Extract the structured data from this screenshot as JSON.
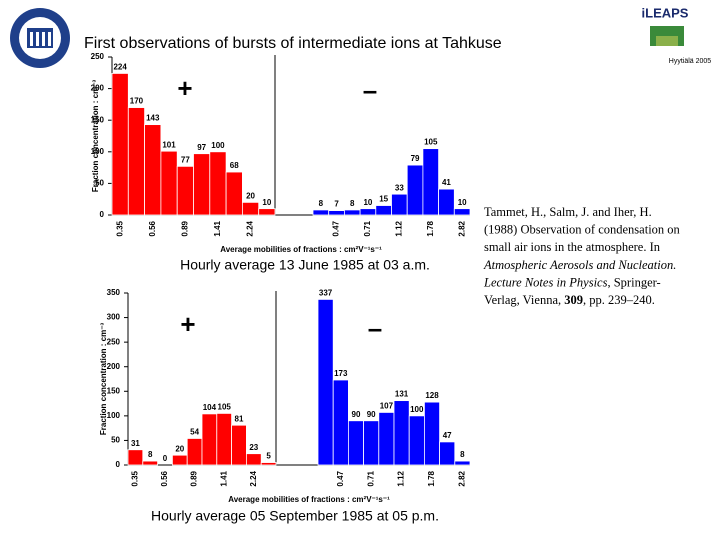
{
  "title": "First observations of bursts of intermediate ions at Tahkuse",
  "logo": {
    "name": "iLEAPS",
    "place": "Hyytiälä 2005"
  },
  "citation": [
    [
      {
        "text": "Tammet, H., Salm, J. and Iher, H.",
        "style": "normal"
      }
    ],
    [
      {
        "text": "(1988) Observation of condensation on",
        "style": "normal"
      }
    ],
    [
      {
        "text": "small air ions in the atmosphere. In",
        "style": "normal"
      }
    ],
    [
      {
        "text": "Atmospheric Aerosols and Nucleation.",
        "style": "italic"
      }
    ],
    [
      {
        "text": "Lecture Notes in Physics",
        "style": "italic"
      },
      {
        "text": ", Springer-",
        "style": "normal"
      }
    ],
    [
      {
        "text": "Verlag, Vienna, ",
        "style": "normal"
      },
      {
        "text": "309",
        "style": "bold"
      },
      {
        "text": ", pp. 239–240.",
        "style": "normal"
      }
    ]
  ],
  "chart_data": [
    {
      "type": "bar",
      "caption": "Hourly average 13 June 1985 at 03 a.m.",
      "x_label": "Average mobilities of fractions : cm²V⁻¹s⁻¹",
      "y_label": "Fraction concentration : cm⁻³",
      "category_labels": [
        "0.35",
        "0.56",
        "0.89",
        "1.41",
        "2.24",
        "0.47",
        "0.71",
        "1.12",
        "1.78",
        "2.82"
      ],
      "ylim": [
        0,
        250
      ],
      "yticks": [
        0,
        50,
        100,
        150,
        200,
        250
      ],
      "series": [
        {
          "name": "+",
          "color": "#ff0000",
          "values": [
            224,
            170,
            143,
            101,
            77,
            97,
            100,
            68,
            20,
            10
          ]
        },
        {
          "name": "–",
          "color": "#0000ff",
          "values": [
            8,
            7,
            8,
            10,
            15,
            33,
            79,
            105,
            41,
            10
          ]
        }
      ]
    },
    {
      "type": "bar",
      "caption": "Hourly average 05 September 1985 at 05 p.m.",
      "x_label": "Average mobilities of fractions : cm²V⁻¹s⁻¹",
      "y_label": "Fraction concentration : cm⁻³",
      "category_labels": [
        "0.35",
        "0.56",
        "0.89",
        "1.41",
        "2.24",
        "0.47",
        "0.71",
        "1.12",
        "1.78",
        "2.82"
      ],
      "ylim": [
        0,
        350
      ],
      "yticks": [
        0,
        50,
        100,
        150,
        200,
        250,
        300,
        350
      ],
      "series": [
        {
          "name": "+",
          "color": "#ff0000",
          "values": [
            31,
            8,
            0,
            20,
            54,
            104,
            105,
            81,
            23,
            5
          ]
        },
        {
          "name": "–",
          "color": "#0000ff",
          "values": [
            337,
            173,
            90,
            90,
            107,
            131,
            100,
            128,
            47,
            8
          ]
        }
      ]
    }
  ]
}
